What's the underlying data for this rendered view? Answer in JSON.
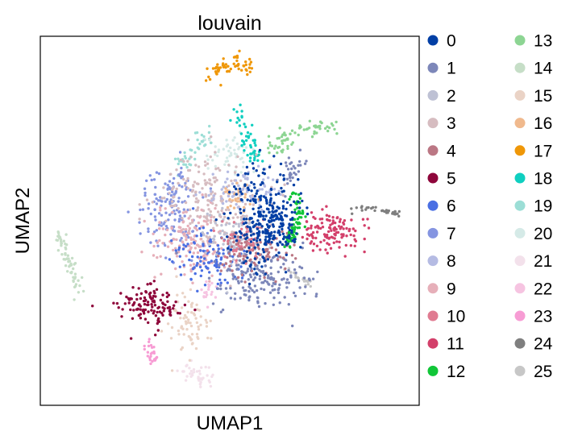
{
  "chart_data": {
    "type": "scatter",
    "title": "louvain",
    "xlabel": "UMAP1",
    "ylabel": "UMAP2",
    "grid": false,
    "legend_position": "right, two columns",
    "series": [
      {
        "name": "0",
        "color": "#023fa5"
      },
      {
        "name": "1",
        "color": "#7d87b9"
      },
      {
        "name": "2",
        "color": "#bec1d4"
      },
      {
        "name": "3",
        "color": "#d6bcc0"
      },
      {
        "name": "4",
        "color": "#bb7784"
      },
      {
        "name": "5",
        "color": "#8e063b"
      },
      {
        "name": "6",
        "color": "#4a6fe3"
      },
      {
        "name": "7",
        "color": "#8595e1"
      },
      {
        "name": "8",
        "color": "#b5bbe3"
      },
      {
        "name": "9",
        "color": "#e6afb9"
      },
      {
        "name": "10",
        "color": "#e07b91"
      },
      {
        "name": "11",
        "color": "#d33f6a"
      },
      {
        "name": "12",
        "color": "#11c638"
      },
      {
        "name": "13",
        "color": "#8dd593"
      },
      {
        "name": "14",
        "color": "#c6dec7"
      },
      {
        "name": "15",
        "color": "#ead3c6"
      },
      {
        "name": "16",
        "color": "#f0b98d"
      },
      {
        "name": "17",
        "color": "#ef9708"
      },
      {
        "name": "18",
        "color": "#0fcfc0"
      },
      {
        "name": "19",
        "color": "#9cded6"
      },
      {
        "name": "20",
        "color": "#d5eae7"
      },
      {
        "name": "21",
        "color": "#f3e1eb"
      },
      {
        "name": "22",
        "color": "#f6c4e1"
      },
      {
        "name": "23",
        "color": "#f79cd4"
      },
      {
        "name": "24",
        "color": "#7f7f7f"
      },
      {
        "name": "25",
        "color": "#c7c7c7"
      }
    ]
  }
}
